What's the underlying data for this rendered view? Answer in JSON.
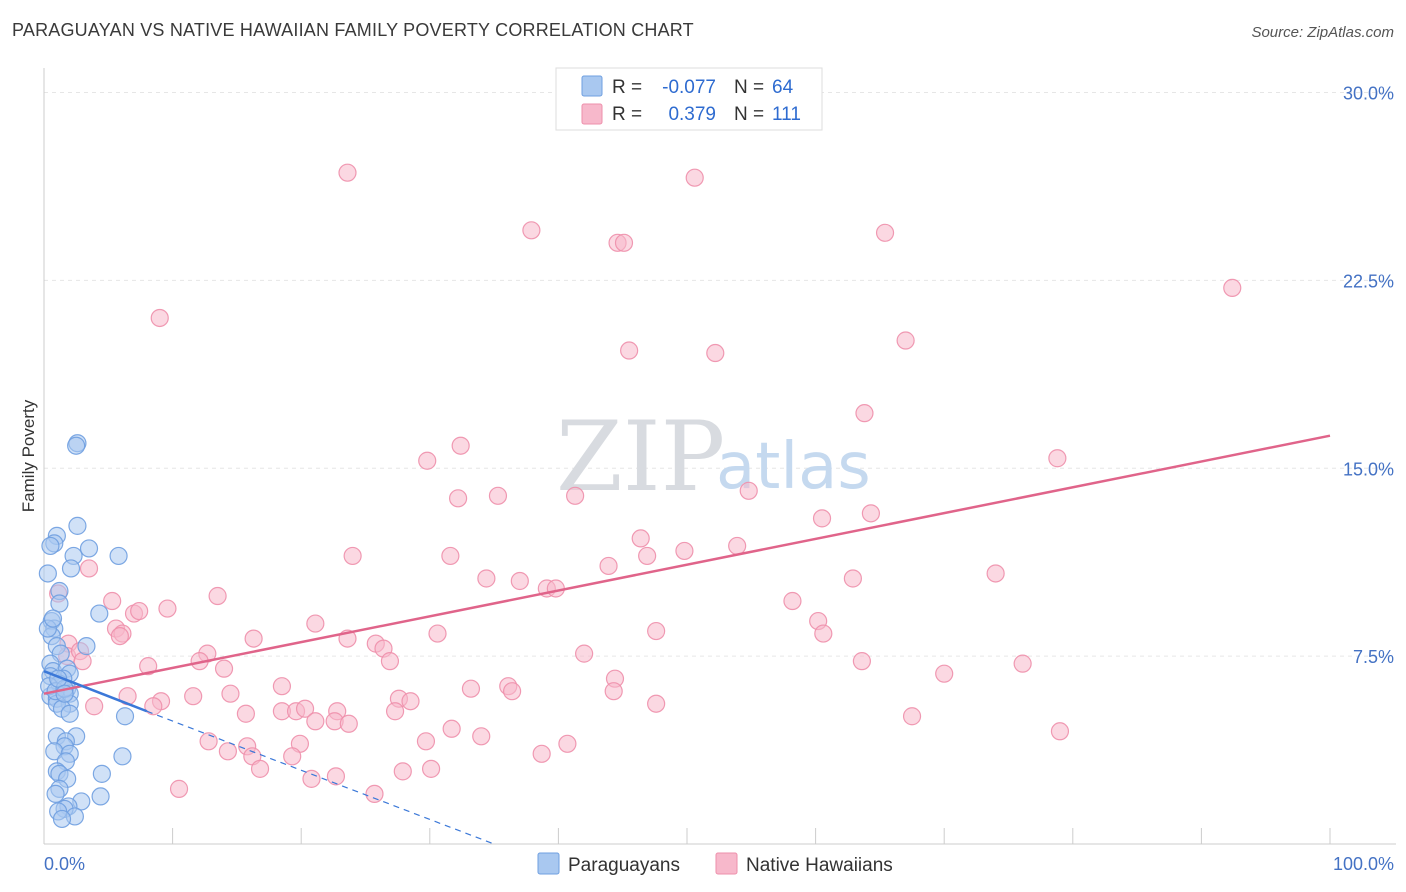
{
  "title": "PARAGUAYAN VS NATIVE HAWAIIAN FAMILY POVERTY CORRELATION CHART",
  "source": "Source: ZipAtlas.com",
  "watermark": {
    "zip": "ZIP",
    "atlas": "atlas"
  },
  "legend": {
    "rows": [
      {
        "r_label": "R =",
        "r_value": "-0.077",
        "n_label": "N =",
        "n_value": "64",
        "color": "#a9c8f0",
        "stroke": "#6f9fe0"
      },
      {
        "r_label": "R =",
        "r_value": "0.379",
        "n_label": "N =",
        "n_value": "111",
        "color": "#f7b8cb",
        "stroke": "#ee8fab"
      }
    ]
  },
  "bottom_legend": [
    {
      "label": "Paraguayans",
      "color": "#a9c8f0",
      "stroke": "#6f9fe0"
    },
    {
      "label": "Native Hawaiians",
      "color": "#f7b8cb",
      "stroke": "#ee8fab"
    }
  ],
  "chart_data": {
    "type": "scatter",
    "title": "PARAGUAYAN VS NATIVE HAWAIIAN FAMILY POVERTY CORRELATION CHART",
    "xlabel": "",
    "ylabel": "Family Poverty",
    "xlim": [
      0,
      100
    ],
    "ylim": [
      0,
      30.5
    ],
    "x_tick_labels": [
      "0.0%",
      "100.0%"
    ],
    "y_ticks": [
      7.5,
      15.0,
      22.5,
      30.0
    ],
    "y_tick_labels": [
      "7.5%",
      "15.0%",
      "22.5%",
      "30.0%"
    ],
    "grid": true,
    "series": [
      {
        "name": "Paraguayans",
        "color": "#6f9fe0",
        "fill": "#a9c8f0",
        "trend": {
          "x": [
            0,
            8
          ],
          "y": [
            6.9,
            5.3
          ],
          "dashed_to": [
            35,
            0.0
          ]
        },
        "points": [
          [
            2.6,
            16.0
          ],
          [
            2.5,
            15.9
          ],
          [
            2.6,
            12.7
          ],
          [
            1.0,
            12.3
          ],
          [
            0.8,
            12.0
          ],
          [
            0.5,
            11.9
          ],
          [
            3.5,
            11.8
          ],
          [
            5.8,
            11.5
          ],
          [
            2.3,
            11.5
          ],
          [
            2.1,
            11.0
          ],
          [
            0.3,
            10.8
          ],
          [
            1.2,
            10.1
          ],
          [
            1.2,
            9.6
          ],
          [
            4.3,
            9.2
          ],
          [
            0.6,
            8.9
          ],
          [
            0.8,
            8.6
          ],
          [
            0.6,
            8.3
          ],
          [
            1.0,
            7.9
          ],
          [
            3.3,
            7.9
          ],
          [
            1.3,
            7.6
          ],
          [
            0.5,
            7.2
          ],
          [
            0.7,
            6.9
          ],
          [
            1.8,
            7.0
          ],
          [
            2.0,
            6.8
          ],
          [
            0.5,
            6.7
          ],
          [
            1.5,
            6.6
          ],
          [
            1.2,
            6.4
          ],
          [
            1.8,
            6.2
          ],
          [
            2.0,
            6.0
          ],
          [
            0.5,
            5.9
          ],
          [
            1.0,
            5.8
          ],
          [
            2.0,
            5.6
          ],
          [
            1.0,
            5.6
          ],
          [
            1.4,
            5.4
          ],
          [
            2.0,
            5.2
          ],
          [
            6.3,
            5.1
          ],
          [
            1.0,
            4.3
          ],
          [
            2.5,
            4.3
          ],
          [
            1.7,
            4.1
          ],
          [
            1.6,
            3.9
          ],
          [
            0.8,
            3.7
          ],
          [
            2.0,
            3.6
          ],
          [
            6.1,
            3.5
          ],
          [
            1.7,
            3.3
          ],
          [
            1.0,
            2.9
          ],
          [
            1.2,
            2.8
          ],
          [
            4.5,
            2.8
          ],
          [
            1.8,
            2.6
          ],
          [
            1.2,
            2.2
          ],
          [
            0.9,
            2.0
          ],
          [
            4.4,
            1.9
          ],
          [
            2.9,
            1.7
          ],
          [
            1.9,
            1.5
          ],
          [
            1.6,
            1.4
          ],
          [
            1.1,
            1.3
          ],
          [
            2.4,
            1.1
          ],
          [
            1.4,
            1.0
          ],
          [
            0.4,
            6.3
          ],
          [
            0.9,
            6.1
          ],
          [
            1.6,
            6.2
          ],
          [
            0.3,
            8.6
          ],
          [
            0.7,
            9.0
          ],
          [
            1.1,
            6.6
          ],
          [
            1.6,
            6.0
          ]
        ]
      },
      {
        "name": "Native Hawaiians",
        "color": "#ee8fab",
        "fill": "#f7b8cb",
        "trend": {
          "x": [
            0,
            100
          ],
          "y": [
            6.0,
            16.3
          ]
        },
        "points": [
          [
            23.6,
            26.8
          ],
          [
            50.6,
            26.6
          ],
          [
            37.9,
            24.5
          ],
          [
            44.6,
            24.0
          ],
          [
            45.1,
            24.0
          ],
          [
            65.4,
            24.4
          ],
          [
            92.4,
            22.2
          ],
          [
            9.0,
            21.0
          ],
          [
            67.0,
            20.1
          ],
          [
            45.5,
            19.7
          ],
          [
            52.2,
            19.6
          ],
          [
            63.8,
            17.2
          ],
          [
            32.4,
            15.9
          ],
          [
            29.8,
            15.3
          ],
          [
            78.8,
            15.4
          ],
          [
            32.2,
            13.8
          ],
          [
            35.3,
            13.9
          ],
          [
            41.3,
            13.9
          ],
          [
            54.8,
            14.1
          ],
          [
            64.3,
            13.2
          ],
          [
            60.5,
            13.0
          ],
          [
            46.4,
            12.2
          ],
          [
            53.9,
            11.9
          ],
          [
            24.0,
            11.5
          ],
          [
            31.6,
            11.5
          ],
          [
            46.9,
            11.5
          ],
          [
            49.8,
            11.7
          ],
          [
            43.9,
            11.1
          ],
          [
            34.4,
            10.6
          ],
          [
            37.0,
            10.5
          ],
          [
            39.1,
            10.2
          ],
          [
            39.8,
            10.2
          ],
          [
            62.9,
            10.6
          ],
          [
            74.0,
            10.8
          ],
          [
            3.5,
            11.0
          ],
          [
            1.1,
            10.0
          ],
          [
            13.5,
            9.9
          ],
          [
            5.3,
            9.7
          ],
          [
            7.0,
            9.2
          ],
          [
            7.4,
            9.3
          ],
          [
            9.6,
            9.4
          ],
          [
            21.1,
            8.8
          ],
          [
            58.2,
            9.7
          ],
          [
            60.2,
            8.9
          ],
          [
            60.6,
            8.4
          ],
          [
            47.6,
            8.5
          ],
          [
            30.6,
            8.4
          ],
          [
            5.6,
            8.6
          ],
          [
            6.1,
            8.4
          ],
          [
            5.9,
            8.3
          ],
          [
            16.3,
            8.2
          ],
          [
            23.6,
            8.2
          ],
          [
            25.8,
            8.0
          ],
          [
            26.4,
            7.8
          ],
          [
            1.9,
            8.0
          ],
          [
            1.8,
            7.5
          ],
          [
            2.8,
            7.7
          ],
          [
            3.0,
            7.3
          ],
          [
            8.1,
            7.1
          ],
          [
            12.7,
            7.6
          ],
          [
            12.1,
            7.3
          ],
          [
            14.0,
            7.0
          ],
          [
            26.9,
            7.3
          ],
          [
            42.0,
            7.6
          ],
          [
            63.6,
            7.3
          ],
          [
            70.0,
            6.8
          ],
          [
            76.1,
            7.2
          ],
          [
            44.4,
            6.6
          ],
          [
            44.3,
            6.1
          ],
          [
            36.1,
            6.3
          ],
          [
            36.4,
            6.1
          ],
          [
            33.2,
            6.2
          ],
          [
            18.5,
            6.3
          ],
          [
            14.5,
            6.0
          ],
          [
            11.6,
            5.9
          ],
          [
            6.5,
            5.9
          ],
          [
            27.6,
            5.8
          ],
          [
            28.5,
            5.7
          ],
          [
            9.1,
            5.7
          ],
          [
            8.5,
            5.5
          ],
          [
            3.9,
            5.5
          ],
          [
            22.8,
            5.3
          ],
          [
            18.5,
            5.3
          ],
          [
            19.6,
            5.3
          ],
          [
            20.3,
            5.4
          ],
          [
            15.7,
            5.2
          ],
          [
            27.3,
            5.3
          ],
          [
            47.6,
            5.6
          ],
          [
            67.5,
            5.1
          ],
          [
            21.1,
            4.9
          ],
          [
            22.6,
            4.9
          ],
          [
            23.7,
            4.8
          ],
          [
            79.0,
            4.5
          ],
          [
            31.7,
            4.6
          ],
          [
            34.0,
            4.3
          ],
          [
            12.8,
            4.1
          ],
          [
            19.9,
            4.0
          ],
          [
            15.8,
            3.9
          ],
          [
            29.7,
            4.1
          ],
          [
            14.3,
            3.7
          ],
          [
            16.2,
            3.5
          ],
          [
            16.8,
            3.0
          ],
          [
            19.3,
            3.5
          ],
          [
            38.7,
            3.6
          ],
          [
            40.7,
            4.0
          ],
          [
            27.9,
            2.9
          ],
          [
            30.1,
            3.0
          ],
          [
            20.8,
            2.6
          ],
          [
            22.7,
            2.7
          ],
          [
            10.5,
            2.2
          ],
          [
            25.7,
            2.0
          ]
        ]
      }
    ]
  }
}
